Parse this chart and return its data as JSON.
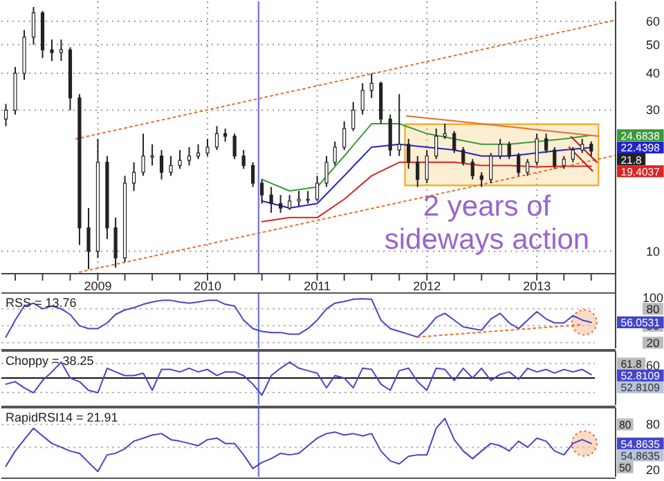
{
  "chart_data": [
    {
      "type": "candlestick",
      "color": "#222222",
      "log": "y",
      "grid": true,
      "xlim": [
        "2008-02-15",
        "2013-09-20"
      ],
      "ylim": [
        8.4,
        70
      ],
      "yticks": [
        10,
        30,
        40,
        50,
        60
      ],
      "xticks": [
        {
          "value": "2008-04",
          "label": null
        },
        {
          "value": "2008-07",
          "label": null
        },
        {
          "value": "2008-10",
          "label": null
        },
        {
          "value": "2009-01",
          "label": "2009"
        },
        {
          "value": "2009-04",
          "label": null
        },
        {
          "value": "2009-07",
          "label": null
        },
        {
          "value": "2009-10",
          "label": null
        },
        {
          "value": "2010-01",
          "label": "2010"
        },
        {
          "value": "2010-04",
          "label": null
        },
        {
          "value": "2010-07",
          "label": null
        },
        {
          "value": "2010-10",
          "label": null
        },
        {
          "value": "2011-01",
          "label": "2011"
        },
        {
          "value": "2011-04",
          "label": null
        },
        {
          "value": "2011-07",
          "label": null
        },
        {
          "value": "2011-10",
          "label": null
        },
        {
          "value": "2012-01",
          "label": "2012"
        },
        {
          "value": "2012-04",
          "label": null
        },
        {
          "value": "2012-07",
          "label": null
        },
        {
          "value": "2012-10",
          "label": null
        },
        {
          "value": "2013-01",
          "label": "2013"
        },
        {
          "value": "2013-04",
          "label": null
        },
        {
          "value": "2013-07",
          "label": null
        }
      ],
      "x": [
        "2008-03",
        "2008-04",
        "2008-05",
        "2008-06",
        "2008-07",
        "2008-08",
        "2008-09",
        "2008-10",
        "2008-11",
        "2008-12",
        "2009-01",
        "2009-02",
        "2009-03",
        "2009-04",
        "2009-05",
        "2009-06",
        "2009-07",
        "2009-08",
        "2009-09",
        "2009-10",
        "2009-11",
        "2009-12",
        "2010-01",
        "2010-02",
        "2010-03",
        "2010-04",
        "2010-05",
        "2010-06",
        "2010-07",
        "2010-08",
        "2010-09",
        "2010-10",
        "2010-11",
        "2010-12",
        "2011-01",
        "2011-02",
        "2011-03",
        "2011-04",
        "2011-05",
        "2011-06",
        "2011-07",
        "2011-08",
        "2011-09",
        "2011-10",
        "2011-11",
        "2011-12",
        "2012-01",
        "2012-02",
        "2012-03",
        "2012-04",
        "2012-05",
        "2012-06",
        "2012-07",
        "2012-08",
        "2012-09",
        "2012-10",
        "2012-11",
        "2012-12",
        "2013-01",
        "2013-02",
        "2013-03",
        "2013-04",
        "2013-05",
        "2013-06",
        "2013-07"
      ],
      "ohlc": [
        [
          28,
          31.5,
          26.5,
          30
        ],
        [
          30,
          42,
          29,
          40
        ],
        [
          40,
          56,
          38,
          53
        ],
        [
          53,
          67,
          50,
          64
        ],
        [
          64,
          65,
          45,
          48
        ],
        [
          48,
          52,
          44,
          47
        ],
        [
          47,
          52,
          44,
          48
        ],
        [
          48,
          49,
          30,
          33
        ],
        [
          33,
          34,
          10.5,
          12
        ],
        [
          12,
          14,
          8.7,
          10
        ],
        [
          10,
          24,
          9.5,
          20
        ],
        [
          20,
          21,
          11,
          12
        ],
        [
          12,
          13,
          8.8,
          9.5
        ],
        [
          9.5,
          18,
          9.2,
          17
        ],
        [
          17,
          20,
          16,
          18.5
        ],
        [
          18.5,
          25,
          18,
          21
        ],
        [
          21,
          23,
          19.5,
          21
        ],
        [
          21,
          22,
          17.5,
          18.5
        ],
        [
          18.5,
          21,
          18,
          19.5
        ],
        [
          19.5,
          22,
          19,
          20.3
        ],
        [
          20.3,
          22.5,
          19.5,
          21
        ],
        [
          21,
          23,
          20.5,
          21.5
        ],
        [
          21.5,
          24,
          21,
          22.5
        ],
        [
          22.5,
          26.5,
          22,
          25
        ],
        [
          25,
          26,
          23.5,
          24.5
        ],
        [
          24.5,
          25,
          20.5,
          21
        ],
        [
          21,
          22,
          19,
          19.5
        ],
        [
          19.5,
          20,
          16.5,
          17
        ],
        [
          17,
          17.5,
          14.5,
          15.5
        ],
        [
          15.5,
          16.5,
          13.5,
          14.5
        ],
        [
          14.5,
          15.5,
          13.5,
          14
        ],
        [
          14,
          15.5,
          13.8,
          14.8
        ],
        [
          14.8,
          16,
          14.2,
          15
        ],
        [
          15,
          16,
          14.5,
          15
        ],
        [
          15,
          18,
          14.8,
          17
        ],
        [
          17,
          21,
          16.5,
          20
        ],
        [
          20,
          23.5,
          19.5,
          22.5
        ],
        [
          22.5,
          27.5,
          22,
          26
        ],
        [
          26,
          32,
          25.5,
          30
        ],
        [
          30,
          37,
          29,
          35
        ],
        [
          35,
          40,
          33,
          37
        ],
        [
          37,
          37.5,
          27,
          28
        ],
        [
          28,
          29,
          21,
          22
        ],
        [
          22,
          34,
          21,
          23
        ],
        [
          23,
          24,
          19,
          20
        ],
        [
          20,
          21,
          16.5,
          17.5
        ],
        [
          17.5,
          22,
          17,
          21
        ],
        [
          21,
          26,
          20.5,
          24.5
        ],
        [
          24.5,
          27,
          24,
          25
        ],
        [
          25,
          25.5,
          21.5,
          22
        ],
        [
          22,
          22.5,
          19.5,
          20
        ],
        [
          20,
          20.5,
          17.5,
          18
        ],
        [
          18,
          18.5,
          16.5,
          17.5
        ],
        [
          17.5,
          21.5,
          17,
          21
        ],
        [
          21,
          24,
          20.5,
          23
        ],
        [
          23,
          23.5,
          20.5,
          21
        ],
        [
          21,
          21.5,
          18,
          18.5
        ],
        [
          18.5,
          20.5,
          18,
          20
        ],
        [
          20,
          25,
          19.5,
          24
        ],
        [
          24,
          25,
          21.5,
          22
        ],
        [
          22,
          22.5,
          19,
          19.5
        ],
        [
          19.5,
          21,
          19,
          20.5
        ],
        [
          20.5,
          22.5,
          20,
          22
        ],
        [
          22,
          24,
          21.5,
          23
        ],
        [
          23,
          23.5,
          21,
          21.8
        ]
      ],
      "value_labels": [
        null,
        null,
        null,
        null,
        null,
        null,
        null,
        null,
        null,
        null,
        null,
        null,
        null,
        null,
        null,
        null,
        null,
        null,
        null,
        null,
        null,
        null,
        null,
        null,
        null,
        null,
        null,
        null,
        null,
        null,
        null,
        null,
        null,
        null,
        null,
        null,
        null,
        null,
        null,
        null,
        null,
        null,
        null,
        null,
        null,
        null,
        null,
        null,
        null,
        null,
        null,
        null,
        null,
        null,
        null,
        null,
        null,
        null,
        null,
        null,
        null,
        null,
        null,
        null,
        "21.8"
      ],
      "series": [
        {
          "type": "area",
          "color": "#f0b030",
          "x": [
            "2011-10-20",
            "2011-10-20",
            "2013-07-25",
            "2013-07-25",
            "2011-10-20"
          ],
          "values": [
            16.7,
            26.9,
            26.9,
            16.7,
            16.7
          ]
        },
        {
          "type": "line",
          "color": "#3a9a3a",
          "x": [
            "2010-07",
            "2010-10",
            "2011-01",
            "2011-04",
            "2011-07",
            "2011-10",
            "2012-01",
            "2012-04",
            "2012-07",
            "2012-10",
            "2013-01",
            "2013-04",
            "2013-07"
          ],
          "values": [
            17.5,
            16,
            16.5,
            21,
            27,
            27,
            25,
            24,
            23,
            23,
            23.5,
            24,
            24.6838
          ]
        },
        {
          "type": "line",
          "color": "#2222cc",
          "x": [
            "2010-07",
            "2010-10",
            "2011-01",
            "2011-04",
            "2011-07",
            "2011-10",
            "2012-01",
            "2012-04",
            "2012-07",
            "2012-10",
            "2013-01",
            "2013-04",
            "2013-07"
          ],
          "values": [
            14.8,
            14,
            14.5,
            18,
            22.5,
            23,
            22.5,
            22,
            21,
            21,
            21.5,
            22,
            22.4398
          ]
        },
        {
          "type": "line",
          "color": "#dd2222",
          "x": [
            "2010-07",
            "2010-10",
            "2011-01",
            "2011-04",
            "2011-07",
            "2011-10",
            "2012-01",
            "2012-04",
            "2012-07",
            "2012-10",
            "2013-01",
            "2013-04",
            "2013-07"
          ],
          "values": [
            12.6,
            13,
            13,
            15,
            18,
            20,
            20,
            20,
            19.5,
            19.5,
            19.3,
            19.4,
            19.4037
          ]
        },
        {
          "type": "line",
          "color": "#f06a28",
          "line_style": "dotted",
          "x": [
            "2008-10-20",
            "2013-09-20"
          ],
          "values": [
            24,
            60.5
          ]
        },
        {
          "type": "line",
          "color": "#f06a28",
          "line_style": "dotted",
          "x": [
            "2008-11-01",
            "2013-09-20"
          ],
          "values": [
            8.5,
            21.1
          ]
        },
        {
          "type": "line",
          "color": "#f06a28",
          "x": [
            "2011-10-25",
            "2013-07-25"
          ],
          "values": [
            28.7,
            24.5
          ]
        },
        {
          "type": "line",
          "color": "#cc1111",
          "x": [
            "2013-04-25",
            "2013-07-20"
          ],
          "values": [
            24.4,
            20
          ]
        },
        {
          "type": "line",
          "color": "#cc1111",
          "x": [
            "2013-04-18",
            "2013-07-05"
          ],
          "values": [
            22.5,
            18.7
          ]
        }
      ],
      "ref_lines": [
        {
          "axis": "x",
          "value": "2010-06-20",
          "color": "#7777ee"
        }
      ],
      "annotations": [
        "2 years of sideways action",
        {
          "text": "24.6838",
          "x": "2013-07",
          "y": 24.6838
        },
        {
          "text": "22.4398",
          "x": "2013-07",
          "y": 22.4398
        },
        {
          "text": "19.4037",
          "x": "2013-07",
          "y": 19.4037
        }
      ]
    },
    {
      "type": "line",
      "title": "RSS = 13.76",
      "xlim": [
        "2008-02-15",
        "2013-09-20"
      ],
      "ylim": [
        10,
        108
      ],
      "yticks": [
        20,
        50,
        80,
        100
      ],
      "tick_labels": "y",
      "x": [
        "2008-03",
        "2008-04",
        "2008-05",
        "2008-06",
        "2008-07",
        "2008-08",
        "2008-09",
        "2008-10",
        "2008-11",
        "2008-12",
        "2009-01",
        "2009-02",
        "2009-03",
        "2009-04",
        "2009-05",
        "2009-06",
        "2009-07",
        "2009-08",
        "2009-09",
        "2009-10",
        "2009-11",
        "2009-12",
        "2010-01",
        "2010-02",
        "2010-03",
        "2010-04",
        "2010-05",
        "2010-06",
        "2010-07",
        "2010-08",
        "2010-09",
        "2010-10",
        "2010-11",
        "2010-12",
        "2011-01",
        "2011-02",
        "2011-03",
        "2011-04",
        "2011-05",
        "2011-06",
        "2011-07",
        "2011-08",
        "2011-09",
        "2011-10",
        "2011-11",
        "2011-12",
        "2012-01",
        "2012-02",
        "2012-03",
        "2012-04",
        "2012-05",
        "2012-06",
        "2012-07",
        "2012-08",
        "2012-09",
        "2012-10",
        "2012-11",
        "2012-12",
        "2013-01",
        "2013-02",
        "2013-03",
        "2013-04",
        "2013-05",
        "2013-06",
        "2013-07"
      ],
      "series": [
        {
          "color": "#4444cc",
          "values": [
            30,
            60,
            85,
            90,
            80,
            85,
            80,
            70,
            50,
            45,
            45,
            55,
            70,
            78,
            82,
            88,
            92,
            95,
            95,
            92,
            90,
            92,
            95,
            95,
            88,
            85,
            60,
            45,
            40,
            38,
            38,
            35,
            35,
            45,
            60,
            80,
            90,
            93,
            97,
            98,
            97,
            60,
            45,
            40,
            35,
            30,
            45,
            65,
            72,
            60,
            48,
            45,
            42,
            62,
            72,
            55,
            45,
            60,
            75,
            62,
            55,
            55,
            68,
            60,
            56.0531
          ]
        },
        {
          "type": "line",
          "color": "#f06a28",
          "line_style": "dotted",
          "x": [
            "2011-12",
            "2013-06"
          ],
          "values": [
            30,
            52
          ]
        }
      ],
      "ref_lines": [
        {
          "axis": "x",
          "value": "2010-06-20",
          "color": "#7777ee"
        },
        {
          "axis": "y",
          "value": 80,
          "color": "#bbbbbb",
          "line_style": "dotted"
        },
        {
          "axis": "y",
          "value": 50,
          "color": "#bbbbbb",
          "line_style": "dotted"
        },
        {
          "axis": "y",
          "value": 20,
          "color": "#bbbbbb",
          "line_style": "dotted"
        }
      ],
      "annotations": [
        {
          "text": "56.0531",
          "x": "2013-07",
          "y": 56.0531
        }
      ]
    },
    {
      "type": "line",
      "title": "Choppy = 38.25",
      "xlim": [
        "2008-02-15",
        "2013-09-20"
      ],
      "ylim": [
        28,
        72
      ],
      "yticks": [
        50,
        60
      ],
      "tick_labels": "y",
      "x": [
        "2008-03",
        "2008-04",
        "2008-05",
        "2008-06",
        "2008-07",
        "2008-08",
        "2008-09",
        "2008-10",
        "2008-11",
        "2008-12",
        "2009-01",
        "2009-02",
        "2009-03",
        "2009-04",
        "2009-05",
        "2009-06",
        "2009-07",
        "2009-08",
        "2009-09",
        "2009-10",
        "2009-11",
        "2009-12",
        "2010-01",
        "2010-02",
        "2010-03",
        "2010-04",
        "2010-05",
        "2010-06",
        "2010-07",
        "2010-08",
        "2010-09",
        "2010-10",
        "2010-11",
        "2010-12",
        "2011-01",
        "2011-02",
        "2011-03",
        "2011-04",
        "2011-05",
        "2011-06",
        "2011-07",
        "2011-08",
        "2011-09",
        "2011-10",
        "2011-11",
        "2011-12",
        "2012-01",
        "2012-02",
        "2012-03",
        "2012-04",
        "2012-05",
        "2012-06",
        "2012-07",
        "2012-08",
        "2012-09",
        "2012-10",
        "2012-11",
        "2012-12",
        "2013-01",
        "2013-02",
        "2013-03",
        "2013-04",
        "2013-05",
        "2013-06",
        "2013-07"
      ],
      "series": [
        {
          "color": "#4444cc",
          "values": [
            45,
            47,
            42,
            38,
            48,
            55,
            63,
            50,
            47,
            40,
            38,
            58,
            55,
            52,
            52,
            54,
            40,
            57,
            57,
            55,
            58,
            55,
            57,
            52,
            55,
            55,
            52,
            45,
            36,
            52,
            58,
            63,
            58,
            56,
            54,
            42,
            52,
            50,
            42,
            58,
            57,
            45,
            40,
            56,
            58,
            47,
            40,
            58,
            57,
            48,
            58,
            50,
            58,
            48,
            53,
            55,
            49,
            58,
            55,
            57,
            54,
            57,
            55,
            57,
            52.8109
          ]
        }
      ],
      "ref_lines": [
        {
          "axis": "x",
          "value": "2010-06-20",
          "color": "#7777ee"
        },
        {
          "axis": "y",
          "value": 61.8,
          "label": "61.8",
          "color": "#bbbbbb",
          "line_style": "dotted"
        },
        {
          "axis": "y",
          "value": 50,
          "color": "#111111"
        },
        {
          "axis": "y",
          "value": 38.2,
          "color": "#bbbbbb",
          "line_style": "dotted"
        }
      ],
      "annotations": [
        {
          "text": "52.8109",
          "x": "2013-07",
          "y": 52.8109
        },
        {
          "text": "52.8109",
          "x": "2013-07",
          "y": 52.8109
        }
      ]
    },
    {
      "type": "line",
      "title": "RapidRSI14 = 21.91",
      "xlim": [
        "2008-02-15",
        "2013-09-20"
      ],
      "ylim": [
        11,
        102
      ],
      "yticks": [
        20,
        80
      ],
      "tick_labels": "y",
      "x": [
        "2008-03",
        "2008-04",
        "2008-05",
        "2008-06",
        "2008-07",
        "2008-08",
        "2008-09",
        "2008-10",
        "2008-11",
        "2008-12",
        "2009-01",
        "2009-02",
        "2009-03",
        "2009-04",
        "2009-05",
        "2009-06",
        "2009-07",
        "2009-08",
        "2009-09",
        "2009-10",
        "2009-11",
        "2009-12",
        "2010-01",
        "2010-02",
        "2010-03",
        "2010-04",
        "2010-05",
        "2010-06",
        "2010-07",
        "2010-08",
        "2010-09",
        "2010-10",
        "2010-11",
        "2010-12",
        "2011-01",
        "2011-02",
        "2011-03",
        "2011-04",
        "2011-05",
        "2011-06",
        "2011-07",
        "2011-08",
        "2011-09",
        "2011-10",
        "2011-11",
        "2011-12",
        "2012-01",
        "2012-02",
        "2012-03",
        "2012-04",
        "2012-05",
        "2012-06",
        "2012-07",
        "2012-08",
        "2012-09",
        "2012-10",
        "2012-11",
        "2012-12",
        "2013-01",
        "2013-02",
        "2013-03",
        "2013-04",
        "2013-05",
        "2013-06",
        "2013-07"
      ],
      "series": [
        {
          "color": "#4444cc",
          "values": [
            25,
            45,
            60,
            75,
            65,
            55,
            50,
            45,
            42,
            30,
            18,
            40,
            42,
            48,
            58,
            62,
            66,
            68,
            60,
            58,
            55,
            52,
            60,
            62,
            55,
            55,
            40,
            22,
            30,
            35,
            42,
            40,
            42,
            52,
            62,
            68,
            70,
            66,
            68,
            65,
            68,
            45,
            32,
            28,
            38,
            40,
            40,
            75,
            88,
            60,
            45,
            35,
            45,
            55,
            52,
            45,
            58,
            50,
            62,
            58,
            45,
            40,
            55,
            60,
            54.8635
          ]
        }
      ],
      "ref_lines": [
        {
          "axis": "x",
          "value": "2010-06-20",
          "color": "#7777ee"
        },
        {
          "axis": "y",
          "value": 80,
          "label": "80",
          "color": "#bbbbbb",
          "line_style": "dotted"
        },
        {
          "axis": "y",
          "value": 50,
          "label": "50",
          "color": "#bbbbbb",
          "line_style": "dotted"
        }
      ],
      "annotations": [
        {
          "text": "54.8635",
          "x": "2013-07",
          "y": 54.8635
        },
        {
          "text": "54.8635",
          "x": "2013-07",
          "y": 54.8635
        }
      ]
    }
  ]
}
